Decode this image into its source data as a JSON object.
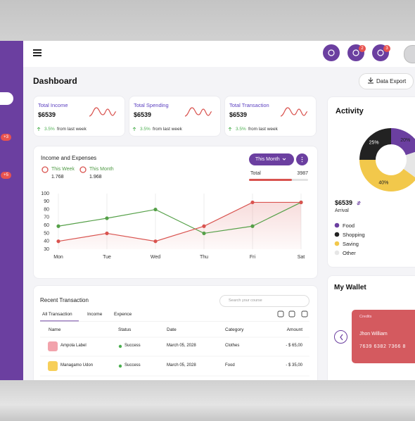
{
  "sidebar": {
    "badges": [
      "+3",
      "+5"
    ]
  },
  "header": {
    "mail_count": "2",
    "notification_count": "3"
  },
  "page_title": "Dashboard",
  "export_button": "Data Export",
  "stats": [
    {
      "title": "Total Income",
      "value": "$6539",
      "change": "3.5%",
      "note": "from last week"
    },
    {
      "title": "Total Spending",
      "value": "$6539",
      "change": "3.5%",
      "note": "from last week"
    },
    {
      "title": "Total Transaction",
      "value": "$6539",
      "change": "3.5%",
      "note": "from last week"
    }
  ],
  "income_card": {
    "title": "Income and Expenses",
    "period_button": "This Month",
    "total_label": "Total",
    "total_value": "3987"
  },
  "chart_data": [
    {
      "type": "line",
      "categories": [
        "Mon",
        "Tue",
        "Wed",
        "Thu",
        "Fri",
        "Sat"
      ],
      "series": [
        {
          "name": "This Week",
          "legend_value": "1.768",
          "color": "#55a048",
          "values": [
            59,
            69,
            80,
            50,
            59,
            89
          ]
        },
        {
          "name": "This Month",
          "legend_value": "1.968",
          "color": "#d9534f",
          "values": [
            40,
            50,
            40,
            59,
            89,
            89
          ],
          "area": true
        }
      ],
      "ylim": [
        30,
        100
      ],
      "yticks": [
        30,
        40,
        50,
        60,
        70,
        80,
        90,
        100
      ],
      "grid": true
    },
    {
      "type": "pie",
      "categories": [
        "Food",
        "Shopping",
        "Saving",
        "Other"
      ],
      "values": [
        20,
        25,
        40,
        15
      ],
      "value_labels": [
        "20%",
        "25%",
        "40%",
        null
      ],
      "colors": [
        "#6b3fa0",
        "#222222",
        "#f2c84b",
        "#e6e6e6"
      ],
      "donut": true
    }
  ],
  "activity": {
    "title": "Activity",
    "amount": "$6539",
    "amount_label": "Arrival"
  },
  "transactions": {
    "title": "Recent Transaction",
    "search_placeholder": "Search your course",
    "tabs": [
      "All Transaction",
      "Income",
      "Expence"
    ],
    "columns": [
      "Name",
      "Status",
      "Date",
      "Category",
      "Amount"
    ],
    "rows": [
      [
        "Ampola Label",
        "Success",
        "March 05, 2028",
        "Clothes",
        "- $ 65,00"
      ],
      [
        "Managamo Udon",
        "Success",
        "March 05, 2028",
        "Food",
        "- $ 35,00"
      ]
    ]
  },
  "wallet": {
    "title": "My Wallet",
    "card_label": "Credits",
    "card_holder": "Jhon William",
    "card_number": "7639 6382 7366 8"
  }
}
